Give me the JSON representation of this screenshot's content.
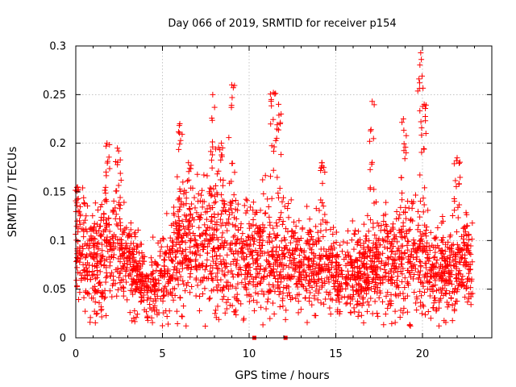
{
  "chart_data": {
    "type": "scatter",
    "title": "Day 066 of 2019, SRMTID for receiver p154",
    "xlabel": "GPS time / hours",
    "ylabel": "SRMTID / TECUs",
    "xlim": [
      0,
      24
    ],
    "ylim": [
      0,
      0.3
    ],
    "xticks": [
      0,
      5,
      10,
      15,
      20
    ],
    "xtick_labels": [
      "0",
      "5",
      "10",
      "15",
      "20"
    ],
    "yticks": [
      0,
      0.05,
      0.1,
      0.15,
      0.2,
      0.25,
      0.3
    ],
    "ytick_labels": [
      "0",
      "0.05",
      "0.1",
      "0.15",
      "0.2",
      "0.25",
      "0.3"
    ],
    "grid": true,
    "marker": "+",
    "color": "#ff0000",
    "x_data_range": [
      0,
      22.9
    ],
    "baseline_level": 0.08,
    "series": [
      {
        "name": "SRMTID",
        "profile": [
          {
            "t": 0.0,
            "center": 0.085,
            "spread": 0.03
          },
          {
            "t": 1.0,
            "center": 0.08,
            "spread": 0.03
          },
          {
            "t": 2.0,
            "center": 0.09,
            "spread": 0.03
          },
          {
            "t": 3.0,
            "center": 0.08,
            "spread": 0.025
          },
          {
            "t": 3.7,
            "center": 0.06,
            "spread": 0.02
          },
          {
            "t": 4.3,
            "center": 0.045,
            "spread": 0.018
          },
          {
            "t": 5.0,
            "center": 0.06,
            "spread": 0.022
          },
          {
            "t": 6.0,
            "center": 0.09,
            "spread": 0.03
          },
          {
            "t": 7.0,
            "center": 0.095,
            "spread": 0.03
          },
          {
            "t": 8.0,
            "center": 0.095,
            "spread": 0.035
          },
          {
            "t": 9.0,
            "center": 0.085,
            "spread": 0.03
          },
          {
            "t": 10.0,
            "center": 0.08,
            "spread": 0.028
          },
          {
            "t": 11.5,
            "center": 0.085,
            "spread": 0.03
          },
          {
            "t": 12.5,
            "center": 0.08,
            "spread": 0.025
          },
          {
            "t": 13.5,
            "center": 0.075,
            "spread": 0.022
          },
          {
            "t": 14.5,
            "center": 0.07,
            "spread": 0.022
          },
          {
            "t": 15.5,
            "center": 0.06,
            "spread": 0.02
          },
          {
            "t": 16.5,
            "center": 0.07,
            "spread": 0.025
          },
          {
            "t": 17.5,
            "center": 0.075,
            "spread": 0.025
          },
          {
            "t": 18.5,
            "center": 0.08,
            "spread": 0.03
          },
          {
            "t": 19.5,
            "center": 0.09,
            "spread": 0.03
          },
          {
            "t": 20.5,
            "center": 0.07,
            "spread": 0.025
          },
          {
            "t": 21.5,
            "center": 0.065,
            "spread": 0.022
          },
          {
            "t": 22.5,
            "center": 0.08,
            "spread": 0.025
          },
          {
            "t": 22.9,
            "center": 0.07,
            "spread": 0.022
          }
        ],
        "spikes": [
          {
            "x": 0.1,
            "peak": 0.155
          },
          {
            "x": 1.8,
            "peak": 0.2
          },
          {
            "x": 2.4,
            "peak": 0.195
          },
          {
            "x": 6.0,
            "peak": 0.22
          },
          {
            "x": 6.5,
            "peak": 0.18
          },
          {
            "x": 7.9,
            "peak": 0.25
          },
          {
            "x": 8.4,
            "peak": 0.2
          },
          {
            "x": 9.0,
            "peak": 0.26
          },
          {
            "x": 11.4,
            "peak": 0.252
          },
          {
            "x": 11.7,
            "peak": 0.24
          },
          {
            "x": 14.2,
            "peak": 0.18
          },
          {
            "x": 17.1,
            "peak": 0.243
          },
          {
            "x": 18.9,
            "peak": 0.225
          },
          {
            "x": 19.9,
            "peak": 0.293
          },
          {
            "x": 20.1,
            "peak": 0.24
          },
          {
            "x": 22.0,
            "peak": 0.185
          }
        ],
        "zero_points": [
          {
            "x": 10.3,
            "y": 0.0
          },
          {
            "x": 12.1,
            "y": 0.0
          }
        ]
      }
    ]
  }
}
